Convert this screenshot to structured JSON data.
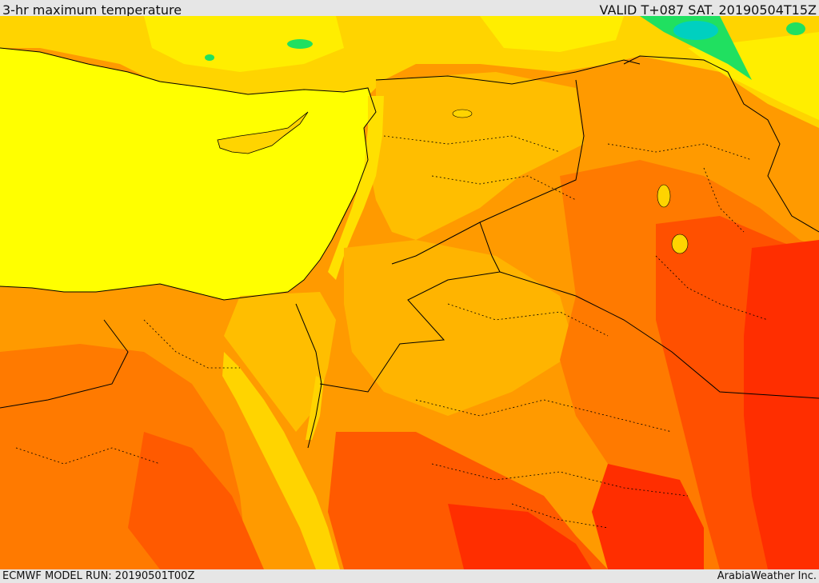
{
  "header": {
    "title": "3-hr maximum temperature",
    "valid": "VALID T+087 SAT. 20190504T15Z"
  },
  "footer": {
    "model_run": "ECMWF MODEL RUN: 20190501T00Z",
    "credit": "ArabiaWeather Inc."
  },
  "colors": {
    "sea": "#ffff00",
    "yellow_orange": "#ffd000",
    "light_orange": "#ffb000",
    "orange": "#ff8c00",
    "dark_orange": "#ff6200",
    "red_orange": "#ff3c00",
    "red": "#ff2000",
    "green": "#20e060",
    "cyan": "#00d0c0",
    "border": "#000000"
  }
}
